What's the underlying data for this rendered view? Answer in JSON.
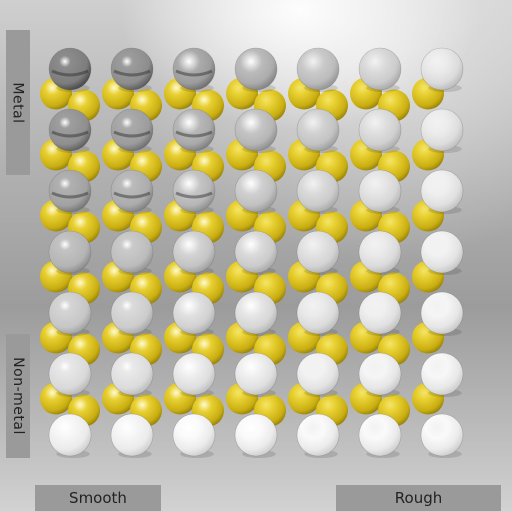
{
  "labels": {
    "metal": "Metal",
    "non_metal": "Non-metal",
    "smooth": "Smooth",
    "rough": "Rough"
  },
  "grid": {
    "columns": 7,
    "rows": 7,
    "gold_rows": 6
  },
  "colors": {
    "chrome": "#c4c4c4",
    "white_ball": "#efefef",
    "gold_ball": "#d8c228",
    "panel": "#9a9a9a"
  }
}
